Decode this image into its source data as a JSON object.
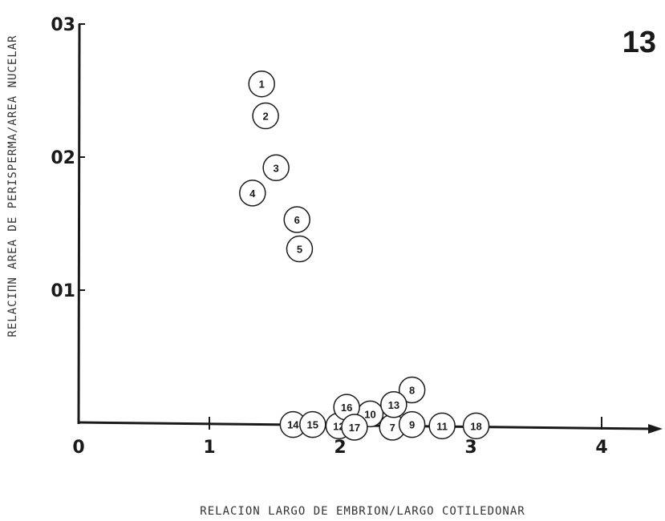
{
  "panel_number": "13",
  "chart_data": {
    "type": "scatter",
    "xlabel": "RELACION LARGO DE EMBRION/LARGO COTILEDONAR",
    "ylabel": "RELACIΠN AREA DE PERISPERMA/AREA NUCELAR",
    "xlim": [
      0,
      4.4
    ],
    "ylim": [
      0,
      0.03
    ],
    "x_ticks": [
      {
        "value": 0,
        "label": "0"
      },
      {
        "value": 1,
        "label": "1"
      },
      {
        "value": 2,
        "label": "2"
      },
      {
        "value": 3,
        "label": "3"
      },
      {
        "value": 4,
        "label": "4"
      }
    ],
    "y_ticks": [
      {
        "value": 0.01,
        "label": "01"
      },
      {
        "value": 0.02,
        "label": "02"
      },
      {
        "value": 0.03,
        "label": "03"
      }
    ],
    "grid": false,
    "points": [
      {
        "label": "1",
        "x": 1.4,
        "y": 0.0255
      },
      {
        "label": "2",
        "x": 1.43,
        "y": 0.0231
      },
      {
        "label": "3",
        "x": 1.51,
        "y": 0.0192
      },
      {
        "label": "4",
        "x": 1.33,
        "y": 0.0173
      },
      {
        "label": "5",
        "x": 1.69,
        "y": 0.0131
      },
      {
        "label": "6",
        "x": 1.67,
        "y": 0.0153
      },
      {
        "label": "7",
        "x": 2.4,
        "y": -0.0003
      },
      {
        "label": "8",
        "x": 2.55,
        "y": 0.0025
      },
      {
        "label": "9",
        "x": 2.55,
        "y": -0.0001
      },
      {
        "label": "10",
        "x": 2.23,
        "y": 0.0007
      },
      {
        "label": "11",
        "x": 2.78,
        "y": -0.0002
      },
      {
        "label": "12",
        "x": 1.99,
        "y": -0.0002
      },
      {
        "label": "13",
        "x": 2.41,
        "y": 0.0014
      },
      {
        "label": "14",
        "x": 1.64,
        "y": -0.0001
      },
      {
        "label": "15",
        "x": 1.79,
        "y": -0.0001
      },
      {
        "label": "16",
        "x": 2.05,
        "y": 0.0012
      },
      {
        "label": "17",
        "x": 2.11,
        "y": -0.0003
      },
      {
        "label": "18",
        "x": 3.04,
        "y": -0.0002
      }
    ]
  }
}
